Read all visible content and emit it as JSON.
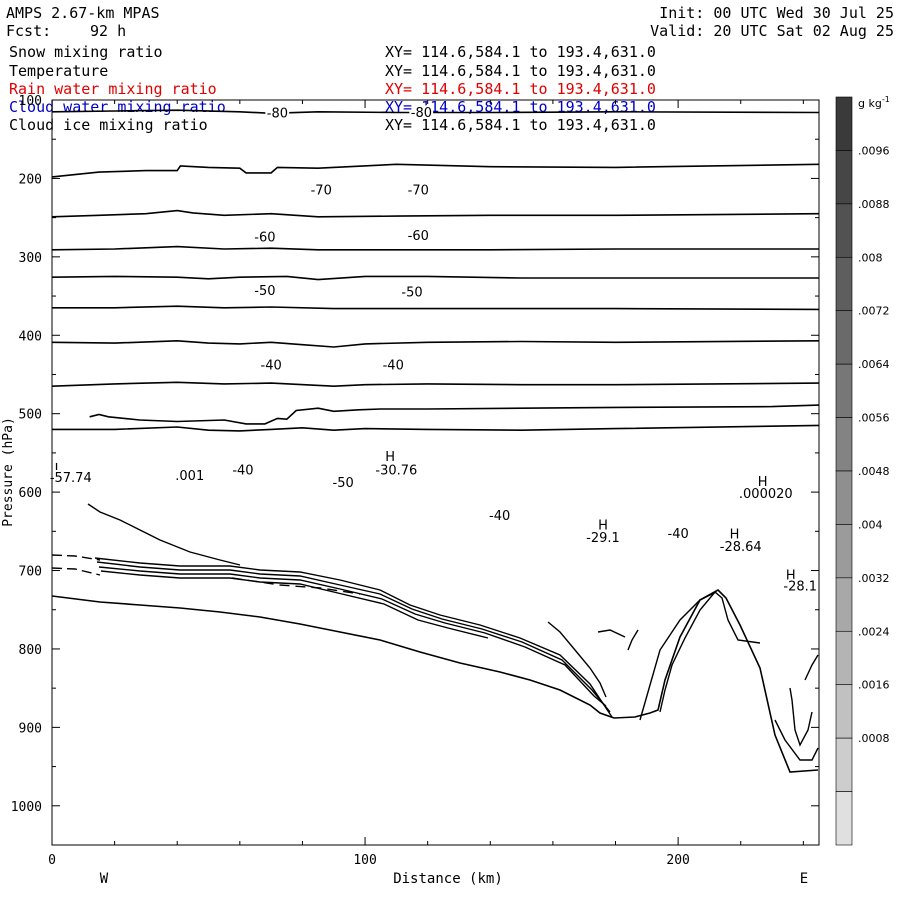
{
  "header": {
    "model": "AMPS 2.67-km MPAS",
    "fcst_label": "Fcst:",
    "fcst_value": "92 h",
    "init": "Init: 00 UTC Wed 30 Jul 25",
    "valid": "Valid: 20 UTC Sat 02 Aug 25",
    "fields": [
      {
        "name": "Snow mixing ratio",
        "xy": "XY= 114.6,584.1 to 193.4,631.0",
        "color": "#000000"
      },
      {
        "name": "Temperature",
        "xy": "XY= 114.6,584.1 to 193.4,631.0",
        "color": "#000000"
      },
      {
        "name": "Rain water mixing ratio",
        "xy": "XY= 114.6,584.1 to 193.4,631.0",
        "color": "#e00000"
      },
      {
        "name": "Cloud water mixing ratio",
        "xy": "XY= 114.6,584.1 to 193.4,631.0",
        "color": "#0000cc"
      },
      {
        "name": "Cloud ice mixing ratio",
        "xy": "XY= 114.6,584.1 to 193.4,631.0",
        "color": "#000000"
      }
    ]
  },
  "chart_data": {
    "type": "contour cross-section",
    "xlabel": "Distance (km)",
    "ylabel": "Pressure (hPa)",
    "xlim": [
      0,
      245
    ],
    "ylim": [
      1050,
      100
    ],
    "x_ticks": [
      0,
      100,
      200
    ],
    "y_ticks": [
      100,
      200,
      300,
      400,
      500,
      600,
      700,
      800,
      900,
      1000
    ],
    "west_label": "W",
    "east_label": "E",
    "colorbar": {
      "unit": "g kg",
      "unit_exp": "-1",
      "labels": [
        ".0096",
        ".0088",
        ".008",
        ".0072",
        ".0064",
        ".0056",
        ".0048",
        ".004",
        ".0032",
        ".0024",
        ".0016",
        ".0008"
      ],
      "grays": [
        "#3a3a3a",
        "#464646",
        "#525252",
        "#5e5e5e",
        "#6a6a6a",
        "#777777",
        "#838383",
        "#8f8f8f",
        "#9b9b9b",
        "#a8a8a8",
        "#b4b4b4",
        "#c1c1c1",
        "#cdcdcd",
        "#e0e0e0"
      ]
    },
    "isotherms": [
      {
        "label": "-80",
        "points": [
          [
            0,
            115
          ],
          [
            20,
            114
          ],
          [
            40,
            113
          ],
          [
            60,
            115
          ],
          [
            70,
            117
          ],
          [
            85,
            115
          ],
          [
            110,
            116
          ],
          [
            140,
            116
          ],
          [
            180,
            115
          ],
          [
            245,
            116
          ]
        ]
      },
      {
        "label": "",
        "points": [
          [
            0,
            198
          ],
          [
            15,
            192
          ],
          [
            30,
            190
          ],
          [
            40,
            190
          ],
          [
            41,
            184
          ],
          [
            50,
            186
          ],
          [
            60,
            187
          ],
          [
            62,
            193
          ],
          [
            70,
            193
          ],
          [
            72,
            186
          ],
          [
            85,
            187
          ],
          [
            110,
            182
          ],
          [
            140,
            185
          ],
          [
            180,
            186
          ],
          [
            245,
            182
          ]
        ]
      },
      {
        "label": "-70",
        "points": [
          [
            0,
            249
          ],
          [
            15,
            247
          ],
          [
            30,
            245
          ],
          [
            40,
            241
          ],
          [
            45,
            244
          ],
          [
            55,
            247
          ],
          [
            70,
            245
          ],
          [
            85,
            249
          ],
          [
            110,
            248
          ],
          [
            140,
            247
          ],
          [
            180,
            247
          ],
          [
            245,
            245
          ]
        ]
      },
      {
        "label": "",
        "points": [
          [
            0,
            291
          ],
          [
            20,
            290
          ],
          [
            40,
            287
          ],
          [
            55,
            290
          ],
          [
            70,
            289
          ],
          [
            85,
            291
          ],
          [
            110,
            291
          ],
          [
            140,
            291
          ],
          [
            180,
            290
          ],
          [
            245,
            290
          ]
        ]
      },
      {
        "label": "-60",
        "points": [
          [
            0,
            326
          ],
          [
            20,
            325
          ],
          [
            40,
            326
          ],
          [
            50,
            328
          ],
          [
            60,
            326
          ],
          [
            75,
            325
          ],
          [
            85,
            329
          ],
          [
            100,
            325
          ],
          [
            120,
            325
          ],
          [
            150,
            327
          ],
          [
            180,
            327
          ],
          [
            245,
            327
          ]
        ]
      },
      {
        "label": "",
        "points": [
          [
            0,
            365
          ],
          [
            20,
            365
          ],
          [
            40,
            363
          ],
          [
            55,
            365
          ],
          [
            70,
            364
          ],
          [
            90,
            366
          ],
          [
            110,
            366
          ],
          [
            140,
            366
          ],
          [
            180,
            366
          ],
          [
            245,
            367
          ]
        ]
      },
      {
        "label": "-50",
        "points": [
          [
            0,
            409
          ],
          [
            20,
            410
          ],
          [
            40,
            407
          ],
          [
            50,
            410
          ],
          [
            60,
            411
          ],
          [
            70,
            409
          ],
          [
            80,
            412
          ],
          [
            90,
            415
          ],
          [
            100,
            411
          ],
          [
            120,
            409
          ],
          [
            150,
            408
          ],
          [
            180,
            409
          ],
          [
            245,
            407
          ]
        ]
      },
      {
        "label": "",
        "points": [
          [
            0,
            465
          ],
          [
            20,
            462
          ],
          [
            40,
            460
          ],
          [
            55,
            462
          ],
          [
            70,
            461
          ],
          [
            90,
            465
          ],
          [
            100,
            463
          ],
          [
            120,
            462
          ],
          [
            150,
            463
          ],
          [
            180,
            463
          ],
          [
            245,
            461
          ]
        ]
      },
      {
        "label": "-40",
        "points": [
          [
            0,
            520
          ],
          [
            20,
            520
          ],
          [
            40,
            517
          ],
          [
            50,
            521
          ],
          [
            60,
            522
          ],
          [
            70,
            520
          ],
          [
            80,
            518
          ],
          [
            90,
            521
          ],
          [
            100,
            519
          ],
          [
            120,
            520
          ],
          [
            150,
            521
          ],
          [
            180,
            519
          ],
          [
            245,
            515
          ]
        ]
      },
      {
        "label": "",
        "points": [
          [
            12,
            504
          ],
          [
            15,
            501
          ],
          [
            18,
            504
          ],
          [
            28,
            508
          ],
          [
            40,
            510
          ],
          [
            55,
            508
          ],
          [
            62,
            513
          ],
          [
            68,
            513
          ],
          [
            72,
            506
          ],
          [
            75,
            507
          ],
          [
            78,
            496
          ],
          [
            85,
            493
          ],
          [
            90,
            497
          ],
          [
            98,
            495
          ],
          [
            105,
            494
          ],
          [
            120,
            494
          ],
          [
            150,
            493
          ],
          [
            180,
            492
          ],
          [
            230,
            491
          ],
          [
            245,
            489
          ]
        ]
      }
    ],
    "annotations": [
      {
        "text": "-80",
        "x": 72,
        "y": 116
      },
      {
        "text": "-80",
        "x": 118,
        "y": 115
      },
      {
        "text": "-70",
        "x": 86,
        "y": 214
      },
      {
        "text": "-70",
        "x": 117,
        "y": 214
      },
      {
        "text": "-60",
        "x": 68,
        "y": 274
      },
      {
        "text": "-60",
        "x": 117,
        "y": 272
      },
      {
        "text": "-50",
        "x": 68,
        "y": 342
      },
      {
        "text": "-50",
        "x": 115,
        "y": 344
      },
      {
        "text": "-40",
        "x": 70,
        "y": 437
      },
      {
        "text": "-40",
        "x": 109,
        "y": 437
      },
      {
        "text": "-40",
        "x": 61,
        "y": 571
      },
      {
        "text": "-50",
        "x": 93,
        "y": 587
      },
      {
        "text": "-40",
        "x": 143,
        "y": 629
      },
      {
        "text": "-40",
        "x": 200,
        "y": 652
      },
      {
        "text": "H",
        "x": 108,
        "y": 554
      },
      {
        "text": "-30.76",
        "x": 110,
        "y": 571
      },
      {
        "text": ".001",
        "x": 44,
        "y": 578
      },
      {
        "text": "L",
        "x": 2,
        "y": 569
      },
      {
        "text": "-57.74",
        "x": 6,
        "y": 581
      },
      {
        "text": "H",
        "x": 176,
        "y": 641
      },
      {
        "text": "-29.1",
        "x": 176,
        "y": 657
      },
      {
        "text": "H",
        "x": 227,
        "y": 586
      },
      {
        "text": ".000020",
        "x": 228,
        "y": 601
      },
      {
        "text": "H",
        "x": 218,
        "y": 653
      },
      {
        "text": "-28.64",
        "x": 220,
        "y": 669
      },
      {
        "text": "H",
        "x": 236,
        "y": 705
      },
      {
        "text": "-28.1",
        "x": 239,
        "y": 719
      }
    ]
  }
}
